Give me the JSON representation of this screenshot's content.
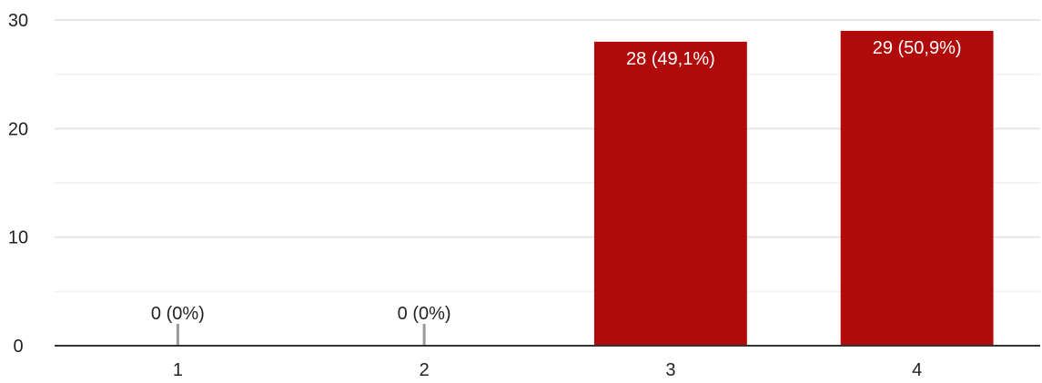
{
  "chart_data": {
    "type": "bar",
    "title": "",
    "xlabel": "",
    "ylabel": "",
    "categories": [
      "1",
      "2",
      "3",
      "4"
    ],
    "values": [
      0,
      0,
      28,
      29
    ],
    "data_labels": [
      "0 (0%)",
      "0 (0%)",
      "28 (49,1%)",
      "29 (50,9%)"
    ],
    "ylim": [
      0,
      30
    ],
    "yticks": [
      0,
      10,
      20,
      30
    ],
    "ytick_labels": [
      "0",
      "10",
      "20",
      "30"
    ],
    "grid": true,
    "minor_grid": true,
    "legend": "none"
  },
  "colors": {
    "bar": "#b00a0a",
    "zero_marker": "#999999",
    "grid_major": "#e6e6e6",
    "grid_minor": "#f3f3f3",
    "axis": "#333333",
    "label_inside": "#ffffff",
    "label_outside": "#222222"
  }
}
